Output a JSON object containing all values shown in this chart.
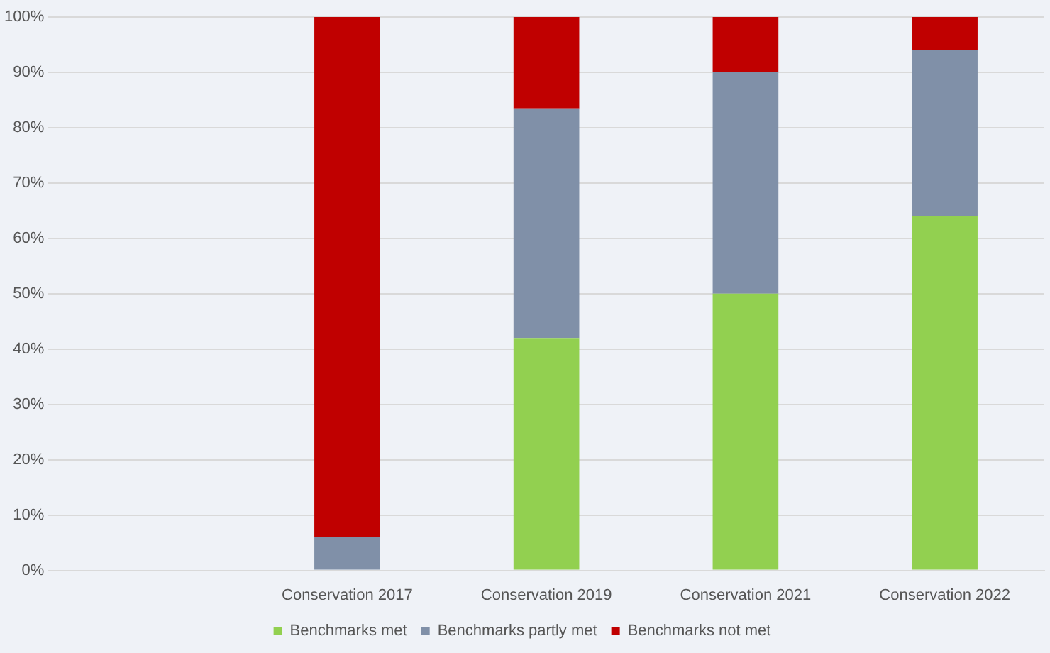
{
  "chart_data": {
    "type": "bar",
    "stacked": true,
    "categories": [
      null,
      "Conservation 2017",
      "Conservation 2019",
      "Conservation 2021",
      "Conservation 2022"
    ],
    "series": [
      {
        "name": "Benchmarks met",
        "color": "#92d050",
        "values": [
          null,
          0,
          42,
          50,
          64
        ]
      },
      {
        "name": "Benchmarks partly met",
        "color": "#8090a8",
        "values": [
          null,
          6,
          41.5,
          40,
          30
        ]
      },
      {
        "name": "Benchmarks not met",
        "color": "#c00000",
        "values": [
          null,
          94,
          16.5,
          10,
          6
        ]
      }
    ],
    "ylim": [
      0,
      100
    ],
    "yticks": [
      {
        "value": 0,
        "label": "0%"
      },
      {
        "value": 10,
        "label": "10%"
      },
      {
        "value": 20,
        "label": "20%"
      },
      {
        "value": 30,
        "label": "30%"
      },
      {
        "value": 40,
        "label": "40%"
      },
      {
        "value": 50,
        "label": "50%"
      },
      {
        "value": 60,
        "label": "60%"
      },
      {
        "value": 70,
        "label": "70%"
      },
      {
        "value": 80,
        "label": "80%"
      },
      {
        "value": 90,
        "label": "90%"
      },
      {
        "value": 100,
        "label": "100%"
      }
    ],
    "grid": "y",
    "legend": "bottom"
  }
}
